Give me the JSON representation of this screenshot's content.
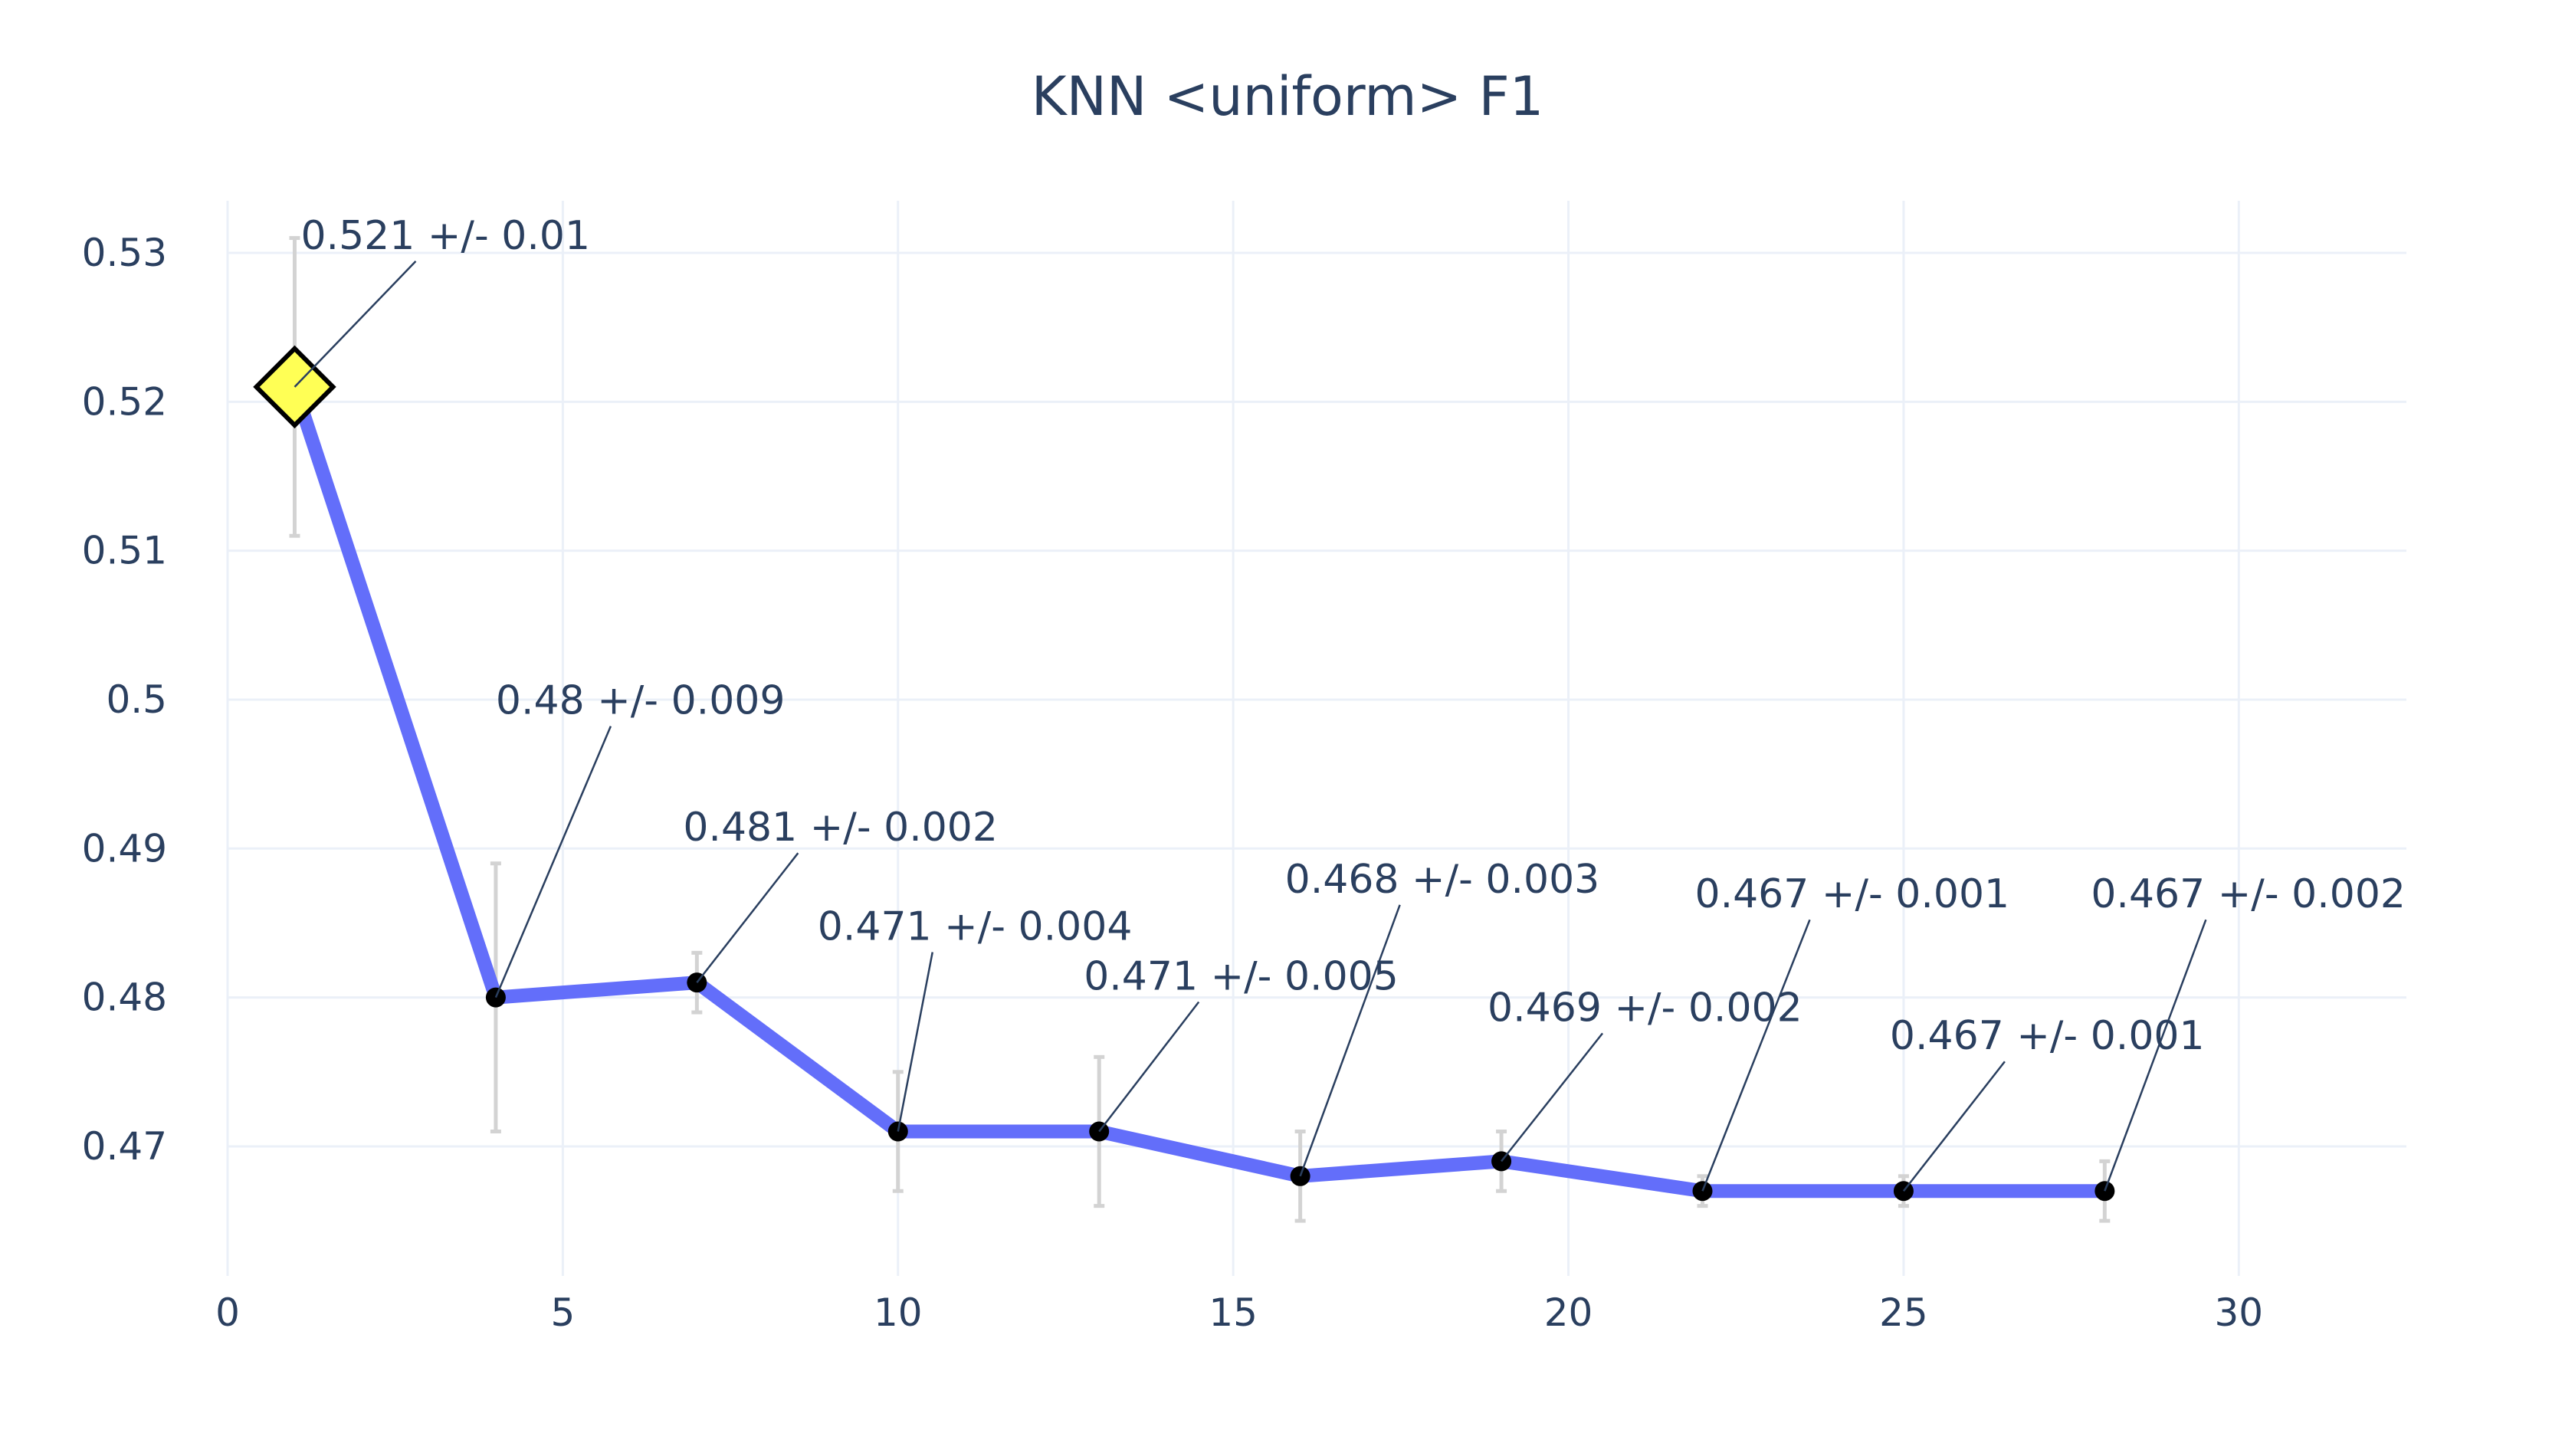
{
  "chart_data": {
    "type": "line",
    "title": "KNN <uniform> F1",
    "xlabel": "",
    "ylabel": "",
    "xlim": [
      0,
      32.5
    ],
    "ylim": [
      0.4613,
      0.5335
    ],
    "x_ticks": [
      0,
      5,
      10,
      15,
      20,
      25,
      30
    ],
    "y_ticks": [
      0.47,
      0.48,
      0.49,
      0.5,
      0.51,
      0.52,
      0.53
    ],
    "x_tick_labels": [
      "0",
      "5",
      "10",
      "15",
      "20",
      "25",
      "30"
    ],
    "y_tick_labels": [
      "0.47",
      "0.48",
      "0.49",
      "0.5",
      "0.51",
      "0.52",
      "0.53"
    ],
    "grid": true,
    "legend": "none",
    "line_color": "#636efa",
    "error_bar_color": "#d3d3d3",
    "highlight_color": "#ffff55",
    "series": [
      {
        "x": [
          1,
          4,
          7,
          10,
          13,
          16,
          19,
          22,
          25,
          28
        ],
        "y": [
          0.521,
          0.48,
          0.481,
          0.471,
          0.471,
          0.468,
          0.469,
          0.467,
          0.467,
          0.467
        ],
        "error": [
          0.01,
          0.009,
          0.002,
          0.004,
          0.005,
          0.003,
          0.002,
          0.001,
          0.001,
          0.002
        ],
        "best_index": 0
      }
    ],
    "annotations": [
      "0.521 +/- 0.01",
      "0.48 +/- 0.009",
      "0.481 +/- 0.002",
      "0.471 +/- 0.004",
      "0.471 +/- 0.005",
      "0.468 +/- 0.003",
      "0.469 +/- 0.002",
      "0.467 +/- 0.001",
      "0.467 +/- 0.001",
      "0.467 +/- 0.002"
    ]
  }
}
